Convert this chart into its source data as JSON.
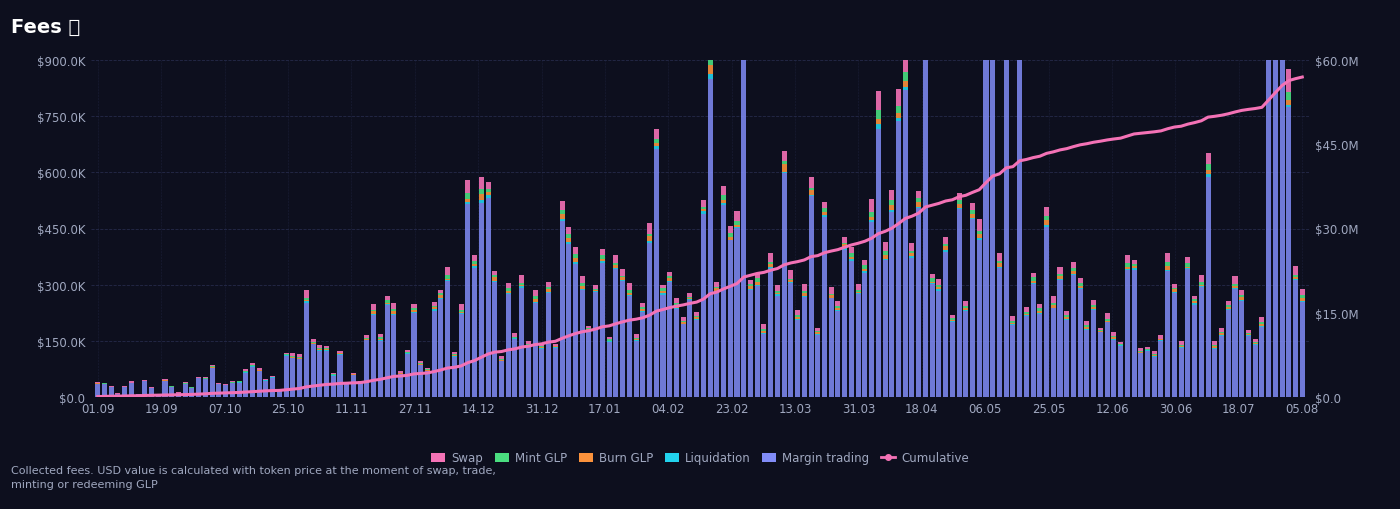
{
  "title": "Fees ⤓",
  "background_color": "#0d0f1e",
  "plot_bg_color": "#0d0f1e",
  "grid_color": "#252a4a",
  "text_color": "#a0a8c0",
  "title_color": "#ffffff",
  "left_ylim": [
    0,
    900000
  ],
  "right_ylim": [
    0,
    60000000
  ],
  "left_yticks": [
    0,
    150000,
    300000,
    450000,
    600000,
    750000,
    900000
  ],
  "left_ytick_labels": [
    "$0.0",
    "$150.0K",
    "$300.0K",
    "$450.0K",
    "$600.0K",
    "$750.0K",
    "$900.0K"
  ],
  "right_yticks": [
    0,
    15000000,
    30000000,
    45000000,
    60000000
  ],
  "right_ytick_labels": [
    "$0.0",
    "$15.0M",
    "$30.0M",
    "$45.0M",
    "$60.0M"
  ],
  "x_labels": [
    "01.09",
    "19.09",
    "07.10",
    "25.10",
    "11.11",
    "27.11",
    "14.12",
    "31.12",
    "17.01",
    "04.02",
    "23.02",
    "13.03",
    "31.03",
    "18.04",
    "06.05",
    "25.05",
    "12.06",
    "30.06",
    "18.07",
    "05.08"
  ],
  "footnote": "Collected fees. USD value is calculated with token price at the moment of swap, trade,\nminting or redeeming GLP",
  "bar_colors": {
    "swap": "#f472b6",
    "mint_glp": "#4ade80",
    "burn_glp": "#fb923c",
    "liquidation": "#22d3ee",
    "margin": "#818cf8"
  },
  "cumulative_color": "#f472b6",
  "n_bars": 180
}
